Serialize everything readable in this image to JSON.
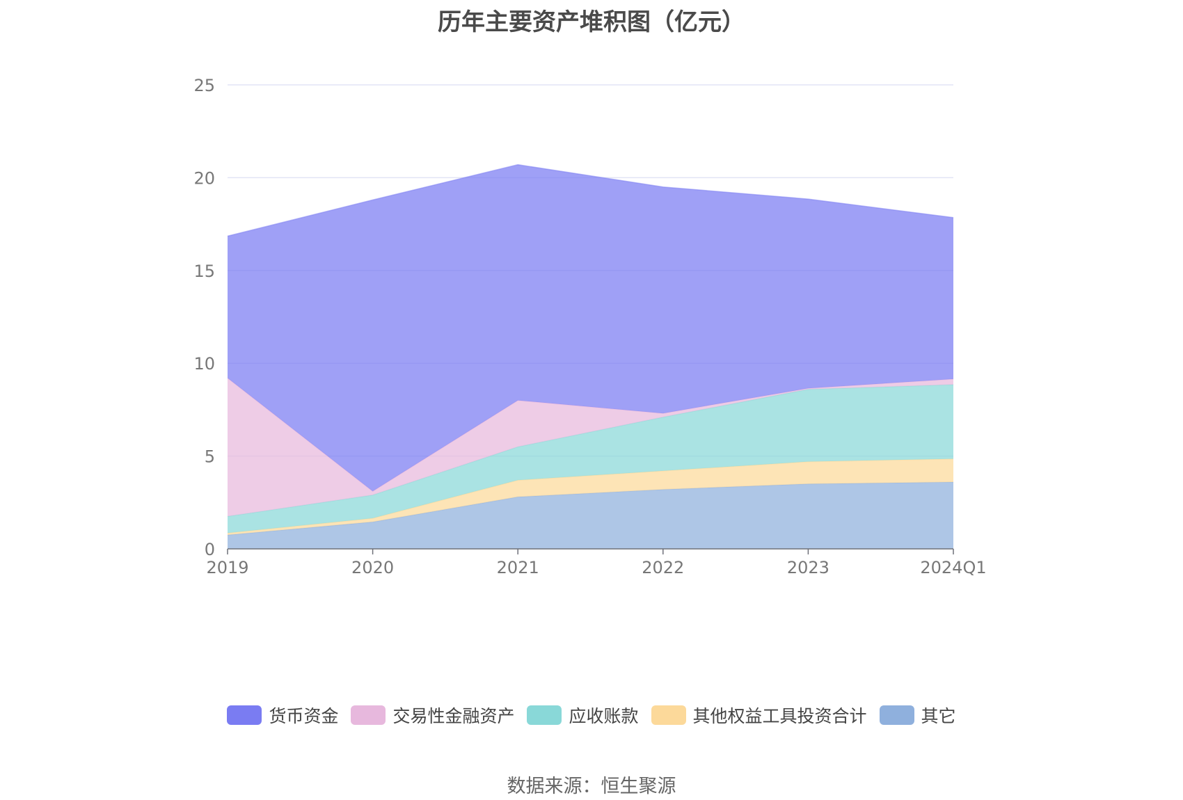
{
  "title": "历年主要资产堆积图（亿元）",
  "source": "数据来源：恒生聚源",
  "chart_data": {
    "type": "area",
    "stacked": true,
    "title": "历年主要资产堆积图（亿元）",
    "categories": [
      "2019",
      "2020",
      "2021",
      "2022",
      "2023",
      "2024Q1"
    ],
    "y_ticks": [
      "0",
      "5",
      "10",
      "15",
      "20",
      "25"
    ],
    "ylim": [
      0,
      25
    ],
    "grid": true,
    "legend_position": "bottom",
    "series": [
      {
        "name": "其它",
        "color": "#8fb0dd",
        "values": [
          0.75,
          1.45,
          2.8,
          3.2,
          3.5,
          3.6
        ]
      },
      {
        "name": "其他权益工具投资合计",
        "color": "#fcd99a",
        "values": [
          0.1,
          0.2,
          0.9,
          1.0,
          1.2,
          1.25
        ]
      },
      {
        "name": "应收账款",
        "color": "#89d8d8",
        "values": [
          0.9,
          1.25,
          1.8,
          2.9,
          3.9,
          4.0
        ]
      },
      {
        "name": "交易性金融资产",
        "color": "#e7b8dd",
        "values": [
          7.45,
          0.2,
          2.5,
          0.2,
          0.05,
          0.3
        ]
      },
      {
        "name": "货币资金",
        "color": "#7a7cf2",
        "values": [
          7.65,
          15.7,
          12.7,
          12.2,
          10.2,
          8.7
        ]
      }
    ],
    "legend_order": [
      "货币资金",
      "交易性金融资产",
      "应收账款",
      "其他权益工具投资合计",
      "其它"
    ]
  }
}
